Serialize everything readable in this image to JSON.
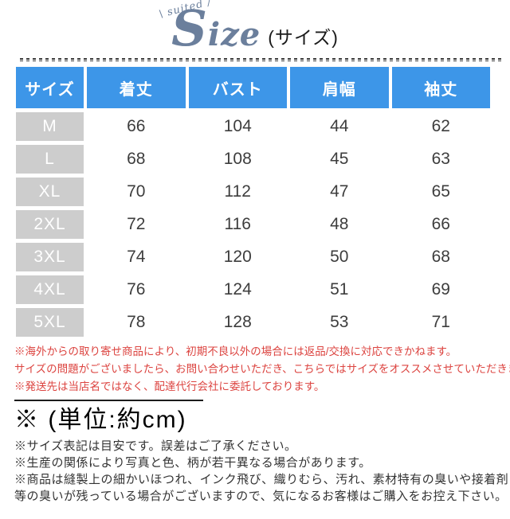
{
  "header": {
    "decoration": "\\ suited /",
    "title": "Size",
    "subtitle": "(サイズ)"
  },
  "chart_data": {
    "type": "table",
    "title": "Size (サイズ)",
    "unit": "約cm",
    "columns": [
      "サイズ",
      "着丈",
      "バスト",
      "肩幅",
      "袖丈"
    ],
    "rows": [
      {
        "size": "M",
        "values": [
          66,
          104,
          44,
          62
        ]
      },
      {
        "size": "L",
        "values": [
          68,
          108,
          45,
          63
        ]
      },
      {
        "size": "XL",
        "values": [
          70,
          112,
          47,
          65
        ]
      },
      {
        "size": "2XL",
        "values": [
          72,
          116,
          48,
          66
        ]
      },
      {
        "size": "3XL",
        "values": [
          74,
          120,
          50,
          68
        ]
      },
      {
        "size": "4XL",
        "values": [
          76,
          124,
          51,
          69
        ]
      },
      {
        "size": "5XL",
        "values": [
          78,
          128,
          53,
          71
        ]
      }
    ]
  },
  "notes": {
    "red": [
      "※海外からの取り寄せ商品により、初期不良以外の場合には返品/交換に対応できかねます。",
      "サイズの問題がございましたら、お問い合わせいただき、こちらではサイズをオススメさせていただきます。",
      "※発送先は当店名ではなく、配達代行会社に委託しております。"
    ],
    "unit_heading": "※ (単位:約cm)",
    "black": [
      "※サイズ表記は目安です。誤差はご了承ください。",
      "※生産の関係により写真と色、柄が若干異なる場合があります。",
      "※商品は縫製上の細かいほつれ、インク飛び、織りむら、汚れ、素材特有の臭いや接着剤",
      "等の臭いが残っている場合がございますので、気になるお客様はご購入をお控え下さい。"
    ]
  },
  "colors": {
    "header_blue": "#3d96e8",
    "size_gray": "#cdcdcd",
    "note_red": "#dc4440",
    "title_slate": "#6b7f9c"
  }
}
